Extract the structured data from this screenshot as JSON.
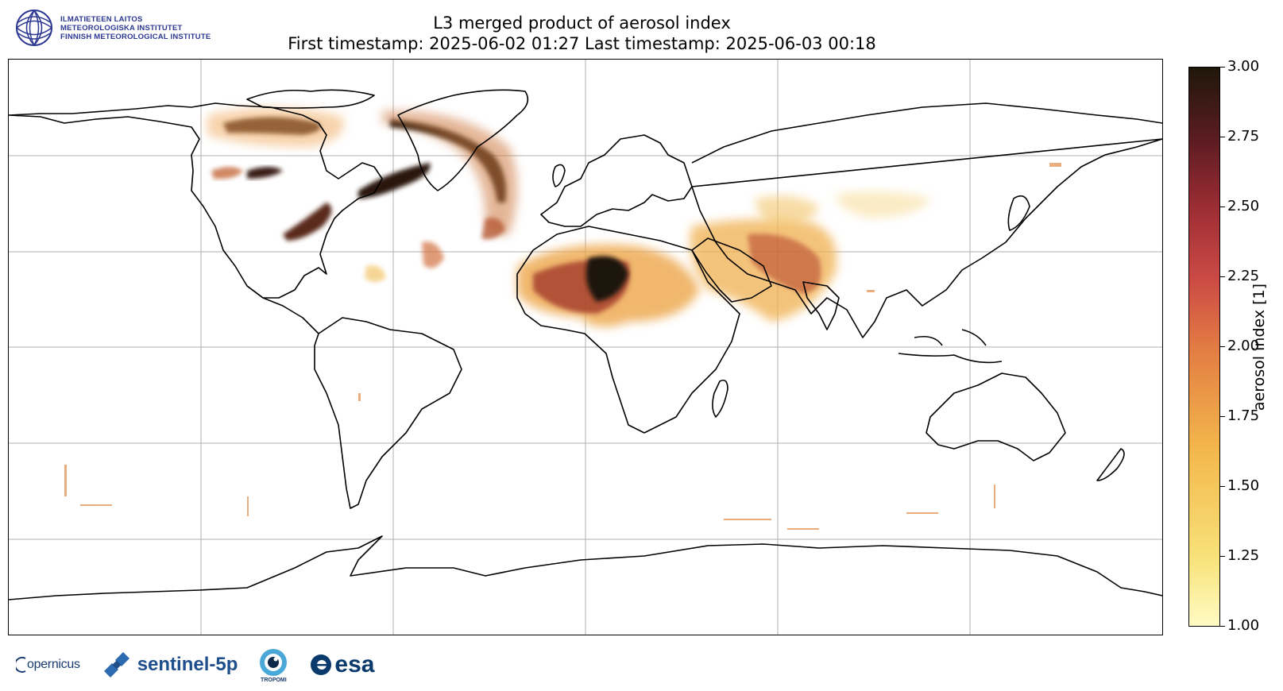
{
  "header": {
    "org_line1": "ILMATIETEEN LAITOS",
    "org_line2": "METEOROLOGISKA INSTITUTET",
    "org_line3": "FINNISH METEOROLOGICAL INSTITUTE",
    "title_line1": "L3 merged product of aerosol index",
    "title_line2": "First timestamp: 2025-06-02 01:27   Last timestamp: 2025-06-03 00:18"
  },
  "colorbar": {
    "label": "aerosol index [1]",
    "min": 1.0,
    "max": 3.0,
    "ticks": [
      "1.00",
      "1.25",
      "1.50",
      "1.75",
      "2.00",
      "2.25",
      "2.50",
      "2.75",
      "3.00"
    ],
    "colors": [
      "#fffbc4",
      "#f8e27a",
      "#f3b64b",
      "#e27b43",
      "#cc4a45",
      "#9c2d34",
      "#5c1c22",
      "#1f1709"
    ]
  },
  "map": {
    "projection": "plate-carree",
    "grid": true,
    "coastline_color": "#000000",
    "features": [
      {
        "name": "smoke-plume-canada",
        "value": 3.0
      },
      {
        "name": "smoke-plume-north-atlantic",
        "value": 3.0
      },
      {
        "name": "dust-sahara",
        "value": 3.0
      },
      {
        "name": "dust-middle-east",
        "value": 2.2
      },
      {
        "name": "dust-asia",
        "value": 1.4
      }
    ]
  },
  "footer": {
    "logo_copernicus": "opernicus",
    "logo_sentinel": "sentinel-5p",
    "logo_tropomi": "TROPOMI",
    "logo_esa": "esa"
  }
}
